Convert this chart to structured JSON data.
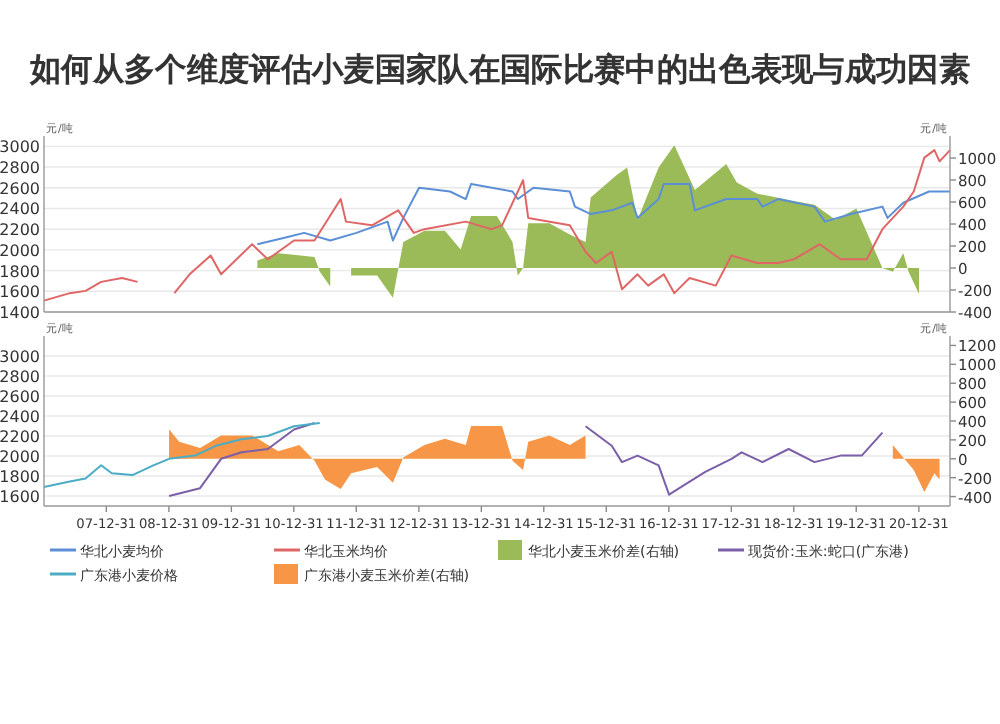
{
  "chart_data": [
    {
      "type": "line",
      "title": "如何从多个维度评估小麦国家队在国际比赛中的出色表现与成功因素",
      "ylabel": "元/吨",
      "y2label": "元/吨",
      "xlim": [
        "2007-01",
        "2021-07"
      ],
      "ylim": [
        1400,
        3100
      ],
      "yticks": [
        1400,
        1600,
        1800,
        2000,
        2200,
        2400,
        2600,
        2800,
        3000
      ],
      "y2lim": [
        -400,
        1200
      ],
      "y2ticks": [
        -400,
        -200,
        0,
        200,
        400,
        600,
        800,
        1000
      ],
      "grid": "y",
      "legend": "bottom",
      "tick_labels": "y",
      "series": [
        {
          "name": "华北小麦均价",
          "type": "line",
          "color": "#5b8fd6",
          "x": [
            "2010-06",
            "2010-12",
            "2011-03",
            "2011-08",
            "2012-01",
            "2012-07",
            "2012-08",
            "2012-10",
            "2013-01",
            "2013-07",
            "2013-10",
            "2013-11",
            "2014-07",
            "2014-08",
            "2014-11",
            "2015-06",
            "2015-07",
            "2015-10",
            "2016-02",
            "2016-06",
            "2016-07",
            "2016-11",
            "2016-12",
            "2017-05",
            "2017-06",
            "2017-12",
            "2018-06",
            "2018-07",
            "2018-10",
            "2019-05",
            "2019-07",
            "2019-12",
            "2020-06",
            "2020-07",
            "2020-10",
            "2021-03",
            "2021-07"
          ],
          "values": [
            2055,
            2127,
            2164,
            2091,
            2164,
            2273,
            2091,
            2309,
            2600,
            2564,
            2491,
            2636,
            2564,
            2491,
            2600,
            2564,
            2418,
            2346,
            2382,
            2455,
            2309,
            2491,
            2636,
            2636,
            2382,
            2491,
            2491,
            2418,
            2491,
            2418,
            2273,
            2346,
            2418,
            2309,
            2455,
            2564,
            2564
          ]
        },
        {
          "name": "华北玉米均价",
          "type": "line",
          "color": "#e06666",
          "x": [
            "2007-01",
            "2007-06",
            "2007-09",
            "2007-12",
            "2008-04",
            "2008-07",
            "2008-10",
            "2009-02",
            "2009-05",
            "2009-09",
            "2009-11",
            "2010-05",
            "2010-08",
            "2011-01",
            "2011-05",
            "2011-10",
            "2011-11",
            "2012-04",
            "2012-09",
            "2012-12",
            "2013-02",
            "2013-10",
            "2014-03",
            "2014-05",
            "2014-09",
            "2014-10",
            "2015-06",
            "2015-09",
            "2015-11",
            "2016-02",
            "2016-04",
            "2016-07",
            "2016-09",
            "2016-12",
            "2017-02",
            "2017-05",
            "2017-10",
            "2018-01",
            "2018-06",
            "2018-10",
            "2019-01",
            "2019-06",
            "2019-10",
            "2020-03",
            "2020-06",
            "2020-10",
            "2020-12",
            "2021-02",
            "2021-04",
            "2021-05",
            "2021-07"
          ],
          "values": [
            1510,
            1582,
            1604,
            1691,
            1728,
            1691,
            null,
            1582,
            1764,
            1946,
            1764,
            2055,
            1909,
            2091,
            2091,
            2491,
            2273,
            2237,
            2382,
            2164,
            2200,
            2273,
            2200,
            2237,
            2673,
            2309,
            2237,
            1982,
            1873,
            1982,
            1619,
            1764,
            1655,
            1764,
            1582,
            1728,
            1655,
            1946,
            1873,
            1873,
            1909,
            2055,
            1909,
            1909,
            2200,
            2418,
            2564,
            2891,
            2964,
            2855,
            2964
          ]
        },
        {
          "name": "华北小麦玉米价差(右轴)",
          "type": "area",
          "axis": "y2",
          "color": "#9bbb59",
          "x": [
            "2010-06",
            "2010-10",
            "2011-05",
            "2011-06",
            "2011-08",
            "2011-10",
            "2011-12",
            "2012-05",
            "2012-08",
            "2012-10",
            "2013-02",
            "2013-06",
            "2013-09",
            "2013-11",
            "2014-04",
            "2014-07",
            "2014-08",
            "2014-09",
            "2014-10",
            "2015-02",
            "2015-06",
            "2015-09",
            "2015-10",
            "2016-03",
            "2016-05",
            "2016-07",
            "2016-11",
            "2017-02",
            "2017-06",
            "2017-12",
            "2018-02",
            "2018-06",
            "2019-01",
            "2019-05",
            "2019-09",
            "2020-01",
            "2020-06",
            "2020-08",
            "2020-10",
            "2020-11",
            "2021-01"
          ],
          "values": [
            68,
            135,
            101,
            -34,
            -169,
            null,
            -68,
            -68,
            -270,
            237,
            338,
            338,
            169,
            473,
            473,
            237,
            -68,
            0,
            406,
            406,
            304,
            237,
            642,
            845,
            913,
            439,
            913,
            1115,
            710,
            946,
            777,
            676,
            608,
            575,
            439,
            541,
            0,
            -34,
            135,
            -34,
            -237
          ]
        }
      ]
    },
    {
      "type": "line",
      "ylabel": "元/吨",
      "y2label": "元/吨",
      "xlim": [
        "2007-01",
        "2021-07"
      ],
      "ylim": [
        1500,
        3200
      ],
      "yticks": [
        1600,
        1800,
        2000,
        2200,
        2400,
        2600,
        2800,
        3000
      ],
      "y2lim": [
        -500,
        1300
      ],
      "y2ticks": [
        -400,
        -200,
        0,
        200,
        400,
        600,
        800,
        1000,
        1200
      ],
      "grid": "y",
      "legend": "bottom",
      "xticks": [
        {
          "value": "2007-12-31",
          "label": "07-12-31"
        },
        {
          "value": "2008-12-31",
          "label": "08-12-31"
        },
        {
          "value": "2009-12-31",
          "label": "09-12-31"
        },
        {
          "value": "2010-12-31",
          "label": "10-12-31"
        },
        {
          "value": "2011-12-31",
          "label": "11-12-31"
        },
        {
          "value": "2012-12-31",
          "label": "12-12-31"
        },
        {
          "value": "2013-12-31",
          "label": "13-12-31"
        },
        {
          "value": "2014-12-31",
          "label": "14-12-31"
        },
        {
          "value": "2015-12-31",
          "label": "15-12-31"
        },
        {
          "value": "2016-12-31",
          "label": "16-12-31"
        },
        {
          "value": "2017-12-31",
          "label": "17-12-31"
        },
        {
          "value": "2018-12-31",
          "label": "18-12-31"
        },
        {
          "value": "2019-12-31",
          "label": "19-12-31"
        },
        {
          "value": "2020-12-31",
          "label": "20-12-31"
        }
      ],
      "series": [
        {
          "name": "现货价:玉米:蛇口(广东港)",
          "type": "line",
          "color": "#7b5fa8",
          "x": [
            "2009-01",
            "2009-07",
            "2009-11",
            "2010-03",
            "2010-08",
            "2011-01",
            "2011-05",
            "2011-07",
            "2015-09",
            "2016-02",
            "2016-04",
            "2016-07",
            "2016-11",
            "2017-01",
            "2017-04",
            "2017-08",
            "2018-01",
            "2018-03",
            "2018-07",
            "2018-12",
            "2019-05",
            "2019-10",
            "2020-02",
            "2020-06"
          ],
          "values": [
            1600,
            1678,
            1972,
            2037,
            2070,
            2265,
            2330,
            null,
            2298,
            2102,
            1939,
            2004,
            1907,
            1613,
            1711,
            1841,
            1972,
            2037,
            1939,
            2070,
            1939,
            2004,
            2004,
            2233
          ]
        },
        {
          "name": "广东港小麦价格",
          "type": "line",
          "color": "#4bacc6",
          "x": [
            "2007-01",
            "2007-06",
            "2007-09",
            "2007-12",
            "2008-02",
            "2008-06",
            "2008-10",
            "2009-01",
            "2009-06",
            "2009-10",
            "2010-03",
            "2010-08",
            "2011-01",
            "2011-06"
          ],
          "values": [
            1691,
            1744,
            1776,
            1907,
            1828,
            1809,
            1907,
            1972,
            2004,
            2102,
            2167,
            2200,
            2298,
            2330
          ]
        },
        {
          "name": "广东港小麦玉米价差(右轴)",
          "type": "area",
          "axis": "y2",
          "color": "#f79646",
          "x": [
            "2009-01",
            "2009-03",
            "2009-07",
            "2009-11",
            "2010-05",
            "2010-10",
            "2011-02",
            "2011-05",
            "2011-07",
            "2011-10",
            "2011-12",
            "2012-05",
            "2012-08",
            "2012-10",
            "2013-02",
            "2013-06",
            "2013-10",
            "2013-11",
            "2014-05",
            "2014-07",
            "2014-09",
            "2014-10",
            "2015-02",
            "2015-06",
            "2015-09",
            "2015-10",
            "2020-08",
            "2020-10",
            "2020-12",
            "2021-02",
            "2021-04",
            "2021-05"
          ],
          "values": [
            313,
            180,
            113,
            247,
            247,
            80,
            147,
            -20,
            -220,
            -320,
            -153,
            -87,
            -253,
            13,
            147,
            213,
            147,
            347,
            347,
            -20,
            -120,
            180,
            247,
            147,
            247,
            null,
            147,
            13,
            -120,
            -353,
            -153,
            -220
          ]
        }
      ]
    }
  ]
}
